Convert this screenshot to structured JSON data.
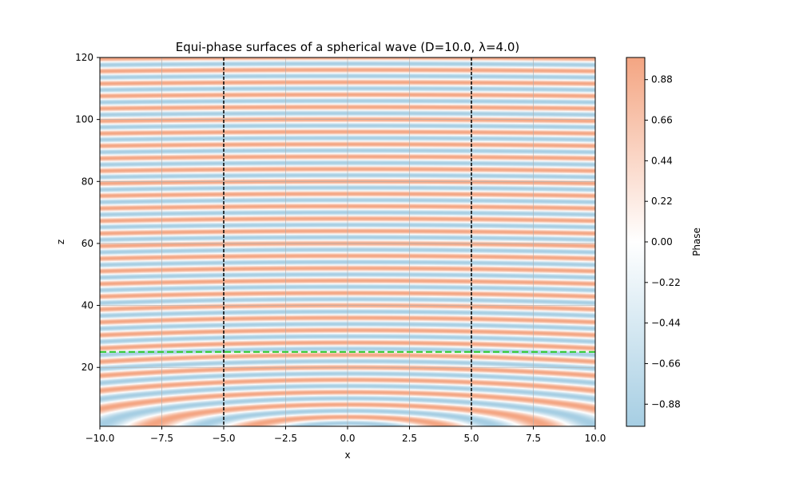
{
  "chart_data": {
    "type": "heatmap",
    "title": "Equi-phase surfaces of a spherical wave (D=10.0, λ=4.0)",
    "xlabel": "x",
    "ylabel": "z",
    "xlim": [
      -10,
      10
    ],
    "ylim": [
      1,
      120
    ],
    "x_ticks": [
      -10,
      -7.5,
      -5,
      -2.5,
      0,
      2.5,
      5,
      7.5,
      10
    ],
    "x_tick_labels": [
      "−10.0",
      "−7.5",
      "−5.0",
      "−2.5",
      "0.0",
      "2.5",
      "5.0",
      "7.5",
      "10.0"
    ],
    "y_ticks": [
      20,
      40,
      60,
      80,
      100,
      120
    ],
    "y_tick_labels": [
      "20",
      "40",
      "60",
      "80",
      "100",
      "120"
    ],
    "grid": true,
    "parameters": {
      "D": 10.0,
      "wavelength": 4.0
    },
    "field": "cos(2π·sqrt(x²+z²)/λ)",
    "aperture_lines_x": [
      -5,
      5
    ],
    "reference_line_z": 25,
    "colormap": {
      "low": "#a6cee3",
      "mid": "#ffffff",
      "high": "#f4a582",
      "range": [
        -1,
        1
      ]
    },
    "colorbar": {
      "label": "Phase",
      "ticks": [
        0.88,
        0.66,
        0.44,
        0.22,
        0.0,
        -0.22,
        -0.44,
        -0.66,
        -0.88
      ],
      "tick_labels": [
        "0.88",
        "0.66",
        "0.44",
        "0.22",
        "0.00",
        "−0.22",
        "−0.44",
        "−0.66",
        "−0.88"
      ]
    },
    "colors": {
      "aperture_line": "#000000",
      "reference_line": "#33cc33",
      "grid": "#b0b0b0"
    }
  }
}
